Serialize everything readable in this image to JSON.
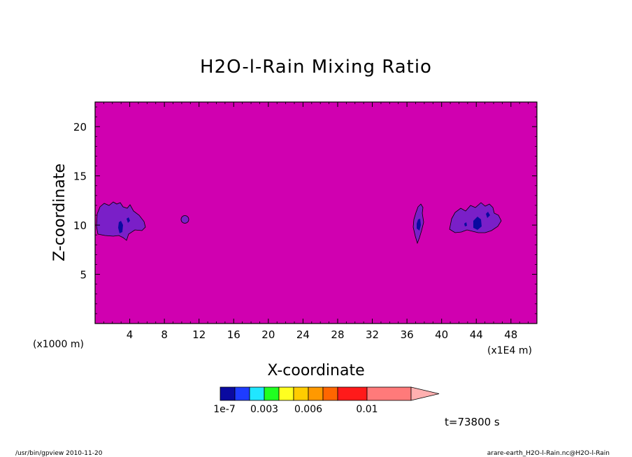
{
  "chart_data": {
    "type": "heatmap",
    "title": "H2O-l-Rain Mixing Ratio",
    "xlabel": "X-coordinate",
    "ylabel": "Z-coordinate",
    "x_unit_left": "(x1000 m)",
    "x_unit_right": "(x1E4 m)",
    "x_ticks": [
      4,
      8,
      12,
      16,
      20,
      24,
      28,
      32,
      36,
      40,
      44,
      48
    ],
    "x_range": [
      0,
      51
    ],
    "y_ticks": [
      5,
      10,
      15,
      20
    ],
    "y_range": [
      0,
      22.5
    ],
    "background_color": "#d000b0",
    "features": [
      {
        "name": "left-cloud",
        "x_center": 2.6,
        "z_center": 10.5,
        "color": "#7a1fc8"
      },
      {
        "name": "small-blob",
        "x_center": 10.5,
        "z_center": 10.7,
        "color": "#7a1fc8"
      },
      {
        "name": "narrow-cloud",
        "x_center": 37.4,
        "z_center": 10.2,
        "color": "#7a1fc8"
      },
      {
        "name": "right-cloud",
        "x_center": 44.6,
        "z_center": 10.8,
        "color": "#7a1fc8"
      }
    ],
    "colorbar": {
      "colors": [
        "#0a0aa0",
        "#1e3cff",
        "#20e6ff",
        "#20ff20",
        "#ffff20",
        "#ffcc00",
        "#ff9900",
        "#ff6600",
        "#ff1a1a",
        "#ff7a7a",
        "#ffb0b0"
      ],
      "labels": [
        "1e-7",
        "0.003",
        "0.006",
        "0.01"
      ]
    }
  },
  "annotations": {
    "time": "t=73800 s",
    "footer_left": "/usr/bin/gpview  2010-11-20",
    "footer_right": "arare-earth_H2O-l-Rain.nc@H2O-l-Rain"
  }
}
